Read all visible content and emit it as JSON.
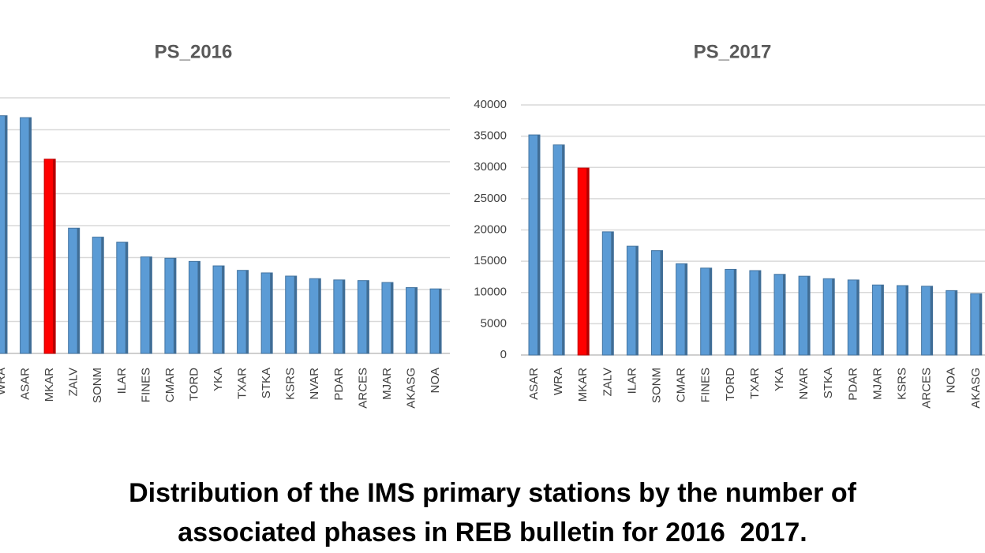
{
  "chart_data": [
    {
      "type": "bar",
      "title": "PS_2016",
      "categories": [
        "WRA",
        "ASAR",
        "MKAR",
        "ZALV",
        "SONM",
        "ILAR",
        "FINES",
        "CMAR",
        "TORD",
        "YKA",
        "TXAR",
        "STKA",
        "KSRS",
        "NVAR",
        "PDAR",
        "ARCES",
        "MJAR",
        "AKASG",
        "NOA"
      ],
      "values": [
        37200,
        36900,
        30400,
        19600,
        18200,
        17400,
        15100,
        14900,
        14400,
        13700,
        13000,
        12600,
        12100,
        11700,
        11500,
        11400,
        11100,
        10300,
        10100
      ],
      "colors": [
        "#5b9bd5",
        "#5b9bd5",
        "#ff0000",
        "#5b9bd5",
        "#5b9bd5",
        "#5b9bd5",
        "#5b9bd5",
        "#5b9bd5",
        "#5b9bd5",
        "#5b9bd5",
        "#5b9bd5",
        "#5b9bd5",
        "#5b9bd5",
        "#5b9bd5",
        "#5b9bd5",
        "#5b9bd5",
        "#5b9bd5",
        "#5b9bd5",
        "#5b9bd5"
      ],
      "ylim": [
        0,
        40000
      ],
      "yticks": [
        0,
        5000,
        10000,
        15000,
        20000,
        25000,
        30000,
        35000,
        40000
      ],
      "grid": true
    },
    {
      "type": "bar",
      "title": "PS_2017",
      "categories": [
        "ASAR",
        "WRA",
        "MKAR",
        "ZALV",
        "ILAR",
        "SONM",
        "CMAR",
        "FINES",
        "TORD",
        "TXAR",
        "YKA",
        "NVAR",
        "STKA",
        "PDAR",
        "MJAR",
        "KSRS",
        "ARCES",
        "NOA",
        "AKASG"
      ],
      "values": [
        35200,
        33600,
        29900,
        19700,
        17400,
        16700,
        14600,
        13900,
        13700,
        13500,
        12900,
        12600,
        12200,
        12000,
        11200,
        11100,
        11000,
        10300,
        9800
      ],
      "colors": [
        "#5b9bd5",
        "#5b9bd5",
        "#ff0000",
        "#5b9bd5",
        "#5b9bd5",
        "#5b9bd5",
        "#5b9bd5",
        "#5b9bd5",
        "#5b9bd5",
        "#5b9bd5",
        "#5b9bd5",
        "#5b9bd5",
        "#5b9bd5",
        "#5b9bd5",
        "#5b9bd5",
        "#5b9bd5",
        "#5b9bd5",
        "#5b9bd5",
        "#5b9bd5"
      ],
      "ylim": [
        0,
        40000
      ],
      "yticks": [
        0,
        5000,
        10000,
        15000,
        20000,
        25000,
        30000,
        35000,
        40000
      ],
      "grid": true,
      "show_ytick_labels": true
    }
  ],
  "caption": [
    "Distribution of the IMS primary stations by the number of",
    "associated phases in REB bulletin for 2016  2017."
  ]
}
